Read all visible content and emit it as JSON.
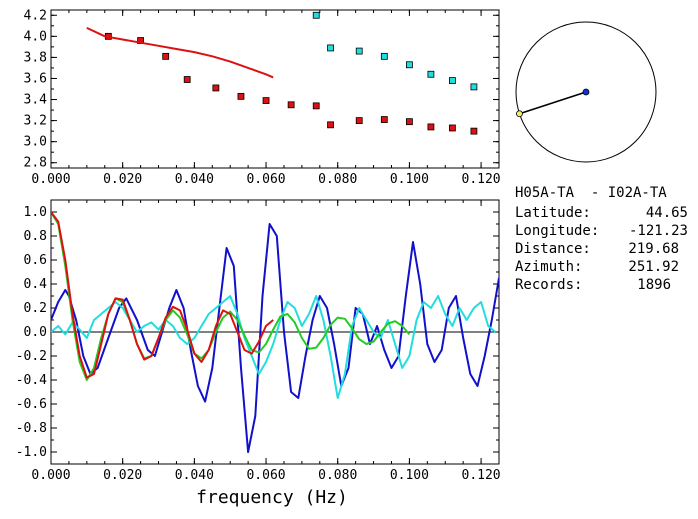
{
  "info": {
    "pair": "H05A-TA  - I02A-TA",
    "latitude_label": "Latitude:",
    "latitude": "44.65",
    "longitude_label": "Longitude:",
    "longitude": "-121.23",
    "distance_label": "Distance:",
    "distance": "219.68",
    "azimuth_label": "Azimuth:",
    "azimuth": "251.92",
    "records_label": "Records:",
    "records": "1896"
  },
  "azimuth_deg": 251.92,
  "colors": {
    "red": "#dd1111",
    "cyan": "#22dddd",
    "blue": "#1111cc",
    "green": "#22cc22",
    "black": "#000000"
  },
  "chart_data": [
    {
      "type": "scatter",
      "xlim": [
        0.0,
        0.125
      ],
      "ylim": [
        2.75,
        4.25
      ],
      "xticks": [
        "0.000",
        "0.020",
        "0.040",
        "0.060",
        "0.080",
        "0.100",
        "0.120"
      ],
      "yticks": [
        "2.8",
        "3.0",
        "3.2",
        "3.4",
        "3.6",
        "3.8",
        "4.0",
        "4.2"
      ],
      "series": [
        {
          "color": "red",
          "marker": "square",
          "x": [
            0.016,
            0.025,
            0.032,
            0.038,
            0.046,
            0.053,
            0.06,
            0.067,
            0.074,
            0.078,
            0.086,
            0.093,
            0.1,
            0.106,
            0.112,
            0.118
          ],
          "y": [
            4.0,
            3.96,
            3.81,
            3.59,
            3.51,
            3.43,
            3.39,
            3.35,
            3.34,
            3.16,
            3.2,
            3.21,
            3.19,
            3.14,
            3.13,
            3.1
          ]
        },
        {
          "color": "cyan",
          "marker": "square",
          "x": [
            0.074,
            0.078,
            0.086,
            0.093,
            0.1,
            0.106,
            0.112,
            0.118
          ],
          "y": [
            4.2,
            3.89,
            3.86,
            3.81,
            3.73,
            3.64,
            3.58,
            3.52
          ]
        },
        {
          "color": "red",
          "marker": "line",
          "x": [
            0.01,
            0.015,
            0.02,
            0.025,
            0.03,
            0.035,
            0.04,
            0.045,
            0.05,
            0.055,
            0.06,
            0.062
          ],
          "y": [
            4.08,
            4.0,
            3.97,
            3.94,
            3.91,
            3.88,
            3.85,
            3.81,
            3.76,
            3.7,
            3.64,
            3.61
          ]
        }
      ]
    },
    {
      "type": "line",
      "xlabel": "frequency (Hz)",
      "xlim": [
        0.0,
        0.125
      ],
      "ylim": [
        -1.1,
        1.1
      ],
      "xticks": [
        "0.000",
        "0.020",
        "0.040",
        "0.060",
        "0.080",
        "0.100",
        "0.120"
      ],
      "yticks": [
        "1.0",
        "0.8",
        "0.6",
        "0.4",
        "0.2",
        "0.0",
        "-0.2",
        "-0.4",
        "-0.6",
        "-0.8",
        "-1.0"
      ],
      "series": [
        {
          "color": "blue",
          "x": [
            0.0,
            0.002,
            0.004,
            0.005,
            0.007,
            0.009,
            0.011,
            0.013,
            0.016,
            0.019,
            0.021,
            0.024,
            0.027,
            0.029,
            0.031,
            0.033,
            0.035,
            0.037,
            0.039,
            0.041,
            0.043,
            0.045,
            0.047,
            0.049,
            0.051,
            0.053,
            0.055,
            0.057,
            0.059,
            0.061,
            0.063,
            0.065,
            0.067,
            0.069,
            0.071,
            0.073,
            0.075,
            0.077,
            0.079,
            0.081,
            0.083,
            0.085,
            0.087,
            0.089,
            0.091,
            0.093,
            0.095,
            0.097,
            0.099,
            0.101,
            0.103,
            0.105,
            0.107,
            0.109,
            0.111,
            0.113,
            0.115,
            0.117,
            0.119,
            0.121,
            0.123,
            0.125
          ],
          "y": [
            0.1,
            0.25,
            0.35,
            0.3,
            0.1,
            -0.2,
            -0.35,
            -0.3,
            -0.05,
            0.2,
            0.28,
            0.1,
            -0.15,
            -0.2,
            0.0,
            0.2,
            0.35,
            0.2,
            -0.15,
            -0.45,
            -0.58,
            -0.3,
            0.2,
            0.7,
            0.55,
            -0.3,
            -1.0,
            -0.7,
            0.3,
            0.9,
            0.8,
            0.0,
            -0.5,
            -0.55,
            -0.2,
            0.1,
            0.3,
            0.2,
            -0.1,
            -0.45,
            -0.3,
            0.2,
            0.15,
            -0.1,
            0.05,
            -0.15,
            -0.3,
            -0.2,
            0.3,
            0.75,
            0.4,
            -0.1,
            -0.25,
            -0.15,
            0.2,
            0.3,
            -0.05,
            -0.35,
            -0.45,
            -0.2,
            0.1,
            0.45
          ]
        },
        {
          "color": "cyan",
          "x": [
            0.0,
            0.002,
            0.004,
            0.006,
            0.008,
            0.01,
            0.012,
            0.014,
            0.016,
            0.018,
            0.02,
            0.022,
            0.024,
            0.026,
            0.028,
            0.03,
            0.032,
            0.034,
            0.036,
            0.038,
            0.04,
            0.042,
            0.044,
            0.046,
            0.048,
            0.05,
            0.052,
            0.054,
            0.056,
            0.058,
            0.06,
            0.062,
            0.064,
            0.066,
            0.068,
            0.07,
            0.072,
            0.074,
            0.076,
            0.078,
            0.08,
            0.082,
            0.084,
            0.086,
            0.088,
            0.09,
            0.092,
            0.094,
            0.096,
            0.098,
            0.1,
            0.102,
            0.104,
            0.106,
            0.108,
            0.11,
            0.112,
            0.114,
            0.116,
            0.118,
            0.12,
            0.122,
            0.124
          ],
          "y": [
            0.0,
            0.05,
            -0.02,
            0.08,
            0.02,
            -0.05,
            0.1,
            0.15,
            0.2,
            0.25,
            0.2,
            0.1,
            0.0,
            0.05,
            0.08,
            0.02,
            0.1,
            0.05,
            -0.05,
            -0.1,
            -0.05,
            0.05,
            0.15,
            0.2,
            0.25,
            0.3,
            0.15,
            -0.05,
            -0.2,
            -0.35,
            -0.25,
            -0.1,
            0.1,
            0.25,
            0.2,
            0.05,
            0.15,
            0.3,
            0.1,
            -0.2,
            -0.55,
            -0.35,
            0.05,
            0.2,
            0.1,
            0.0,
            -0.05,
            0.1,
            -0.1,
            -0.3,
            -0.2,
            0.1,
            0.25,
            0.2,
            0.3,
            0.15,
            0.05,
            0.2,
            0.1,
            0.2,
            0.25,
            0.05,
            0.0
          ]
        },
        {
          "color": "green",
          "x": [
            0.0,
            0.002,
            0.004,
            0.006,
            0.008,
            0.01,
            0.012,
            0.014,
            0.016,
            0.018,
            0.02,
            0.022,
            0.024,
            0.026,
            0.028,
            0.03,
            0.032,
            0.034,
            0.036,
            0.038,
            0.04,
            0.042,
            0.044,
            0.046,
            0.048,
            0.05,
            0.052,
            0.054,
            0.056,
            0.058,
            0.06,
            0.062,
            0.064,
            0.066,
            0.068,
            0.07,
            0.072,
            0.074,
            0.076,
            0.078,
            0.08,
            0.082,
            0.084,
            0.086,
            0.088,
            0.09,
            0.092,
            0.094,
            0.096,
            0.098,
            0.1
          ],
          "y": [
            1.0,
            0.9,
            0.55,
            0.1,
            -0.25,
            -0.4,
            -0.3,
            -0.05,
            0.15,
            0.28,
            0.25,
            0.1,
            -0.1,
            -0.22,
            -0.2,
            -0.05,
            0.1,
            0.18,
            0.12,
            -0.02,
            -0.18,
            -0.22,
            -0.15,
            0.0,
            0.12,
            0.17,
            0.1,
            -0.03,
            -0.15,
            -0.17,
            -0.1,
            0.02,
            0.13,
            0.15,
            0.08,
            -0.05,
            -0.14,
            -0.13,
            -0.05,
            0.06,
            0.12,
            0.11,
            0.03,
            -0.06,
            -0.1,
            -0.08,
            0.0,
            0.07,
            0.09,
            0.05,
            -0.02
          ]
        },
        {
          "color": "red",
          "x": [
            0.0,
            0.002,
            0.004,
            0.006,
            0.008,
            0.01,
            0.012,
            0.014,
            0.016,
            0.018,
            0.02,
            0.022,
            0.024,
            0.026,
            0.028,
            0.03,
            0.032,
            0.034,
            0.036,
            0.038,
            0.04,
            0.042,
            0.044,
            0.046,
            0.048,
            0.05,
            0.052,
            0.054,
            0.056,
            0.058,
            0.06,
            0.062
          ],
          "y": [
            1.0,
            0.92,
            0.6,
            0.15,
            -0.2,
            -0.38,
            -0.35,
            -0.1,
            0.15,
            0.28,
            0.27,
            0.1,
            -0.1,
            -0.23,
            -0.2,
            -0.05,
            0.12,
            0.21,
            0.18,
            0.02,
            -0.18,
            -0.25,
            -0.15,
            0.05,
            0.18,
            0.15,
            0.0,
            -0.15,
            -0.18,
            -0.08,
            0.05,
            0.1
          ]
        }
      ]
    }
  ]
}
